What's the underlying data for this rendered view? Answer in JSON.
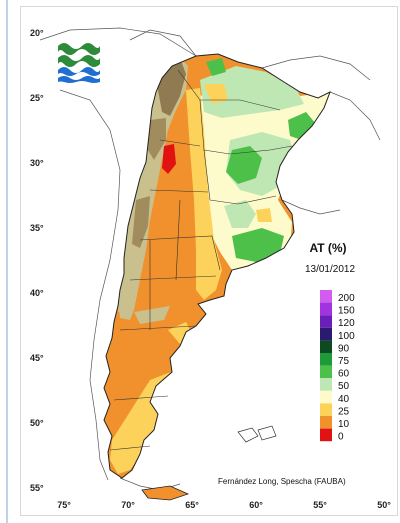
{
  "map": {
    "title": "AT (%)",
    "date": "13/01/2012",
    "credit": "Fernández Long, Spescha (FAUBA)",
    "lat_labels": [
      "20°",
      "25°",
      "30°",
      "35°",
      "40°",
      "45°",
      "50°",
      "55°"
    ],
    "lon_labels": [
      "75°",
      "70°",
      "65°",
      "60°",
      "55°",
      "50°"
    ],
    "legend": [
      {
        "value": "200",
        "color": "#d05cf0"
      },
      {
        "value": "150",
        "color": "#a233e0"
      },
      {
        "value": "120",
        "color": "#6a1fb8"
      },
      {
        "value": "100",
        "color": "#2a1a70"
      },
      {
        "value": "90",
        "color": "#0c4a22"
      },
      {
        "value": "75",
        "color": "#1e9a3a"
      },
      {
        "value": "60",
        "color": "#4dc04a"
      },
      {
        "value": "50",
        "color": "#bfe7b3"
      },
      {
        "value": "40",
        "color": "#fdfbcb"
      },
      {
        "value": "25",
        "color": "#fdd25a"
      },
      {
        "value": "10",
        "color": "#f0912e"
      },
      {
        "value": "0",
        "color": "#e11212"
      }
    ],
    "logo": "wave-logo"
  }
}
